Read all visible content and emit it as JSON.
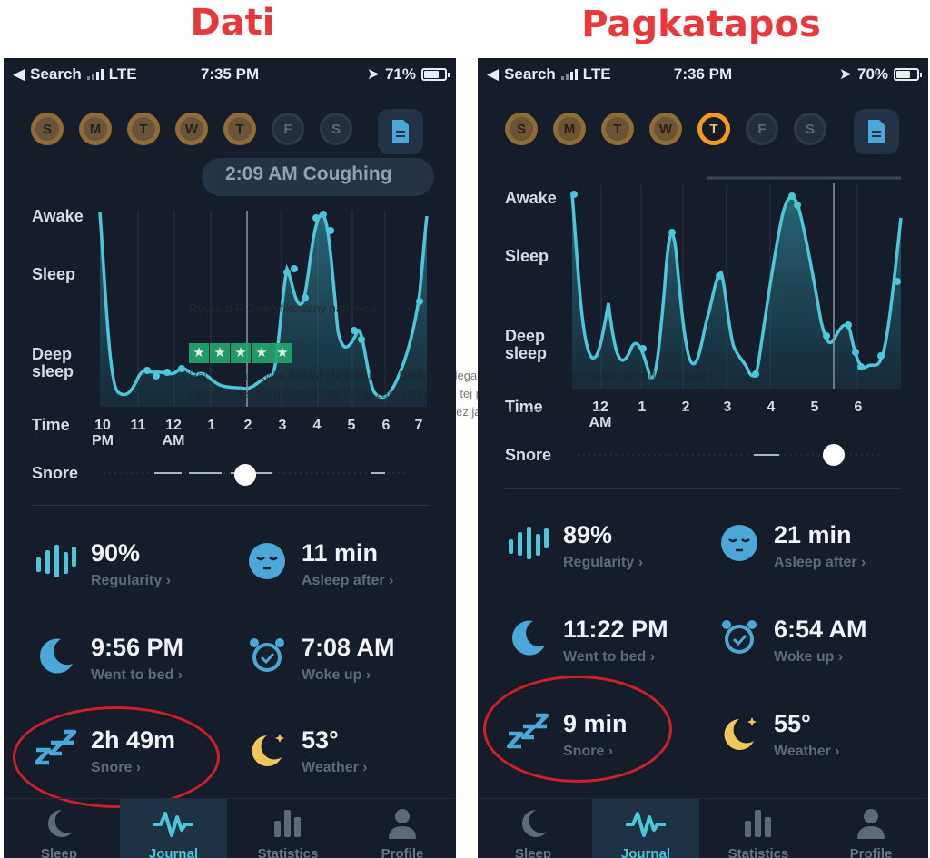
{
  "headings": {
    "left": "Dati",
    "right": "Pagkatapos"
  },
  "colors": {
    "heading": "#e8383b",
    "accent": "#4cc6d9",
    "moon": "#f1c65a",
    "oval": "#cf1f28",
    "day_done": "#8e6c36",
    "day_active": "#f39a1e"
  },
  "left": {
    "status": {
      "back": "Search",
      "network": "LTE",
      "time": "7:35 PM",
      "battery": "71%",
      "battery_level": 0.71
    },
    "days": [
      "S",
      "M",
      "T",
      "W",
      "T",
      "F",
      "S"
    ],
    "chart": {
      "y_labels": [
        "Awake",
        "Sleep",
        "Deep sleep"
      ],
      "time_label": "Time",
      "x_ticks": [
        "10 PM",
        "11",
        "12 AM",
        "1",
        "2",
        "3",
        "4",
        "5",
        "6",
        "7"
      ],
      "snore_label": "Snore",
      "event": "2:09 AM Coughing"
    },
    "stats": {
      "regularity": {
        "value": "90%",
        "label": "Regularity ›",
        "icon": "bars-icon"
      },
      "asleep_after": {
        "value": "11 min",
        "label": "Asleep after ›",
        "icon": "sleepy-face-icon"
      },
      "went_to_bed": {
        "value": "9:56 PM",
        "label": "Went to bed ›",
        "icon": "moon-icon"
      },
      "woke_up": {
        "value": "7:08 AM",
        "label": "Woke up ›",
        "icon": "alarm-clock-icon"
      },
      "snore": {
        "value": "2h 49m",
        "label": "Snore ›",
        "icon": "zzz-icon"
      },
      "weather": {
        "value": "53°",
        "label": "Weather ›",
        "icon": "moon-star-icon"
      }
    }
  },
  "right": {
    "status": {
      "back": "Search",
      "network": "LTE",
      "time": "7:36 PM",
      "battery": "70%",
      "battery_level": 0.7
    },
    "days": [
      "S",
      "M",
      "T",
      "W",
      "T",
      "F",
      "S"
    ],
    "chart": {
      "y_labels": [
        "Awake",
        "Sleep",
        "Deep sleep"
      ],
      "time_label": "Time",
      "x_ticks": [
        "12 AM",
        "1",
        "2",
        "3",
        "4",
        "5",
        "6"
      ],
      "snore_label": "Snore"
    },
    "stats": {
      "regularity": {
        "value": "89%",
        "label": "Regularity ›",
        "icon": "bars-icon"
      },
      "asleep_after": {
        "value": "21 min",
        "label": "Asleep after ›",
        "icon": "sleepy-face-icon"
      },
      "went_to_bed": {
        "value": "11:22 PM",
        "label": "Went to bed ›",
        "icon": "moon-icon"
      },
      "woke_up": {
        "value": "6:54 AM",
        "label": "Woke up ›",
        "icon": "alarm-clock-icon"
      },
      "snore": {
        "value": "9 min",
        "label": "Snore ›",
        "icon": "zzz-icon"
      },
      "weather": {
        "value": "55°",
        "label": "Weather ›",
        "icon": "moon-star-icon"
      }
    }
  },
  "tabs": [
    "Sleep",
    "Journal",
    "Statistics",
    "Profile"
  ],
  "review_overlay": {
    "reviewer": "Ryszard F. Zweryfikowany nabywca",
    "stars": "★",
    "rating": 5,
    "text": "Hej, wpadam tylko dzisiaj - ta poduszka Derila jest legalna. Całe życie pracowałem w budownictwie i ciesielstwie, ból pleców i szyi to nie żart. Używałem tej poduszki przez jakieś 3 noce i już czuję różnicę. To tak, jakby moja głowa unosiła się na chmurze. Bez jaj. Żona chce taką teraz, hahah. Dzięki temu, kto to zrobił. Naprawdę ratuje moje stare kości."
  }
}
